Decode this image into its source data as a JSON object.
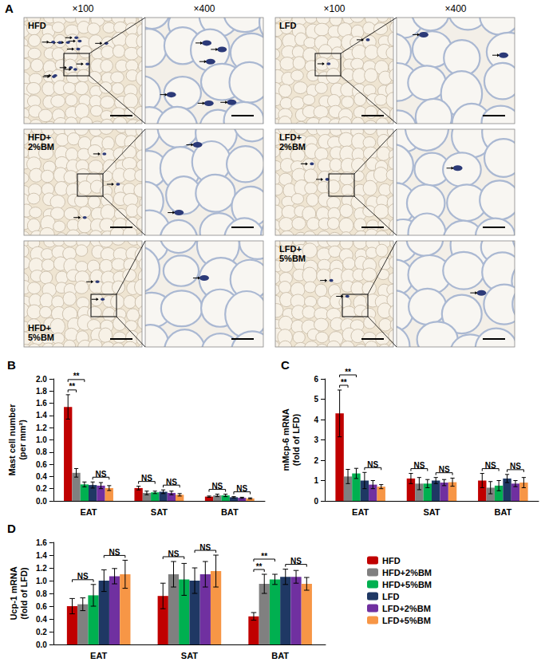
{
  "micrographs": {
    "title": "A",
    "magnifications": [
      "×100",
      "×400",
      "×100",
      "×400"
    ],
    "rows": [
      {
        "left": [
          "HFD"
        ],
        "right": [
          "LFD"
        ]
      },
      {
        "left": [
          "HFD+",
          "2%BM"
        ],
        "right": [
          "LFD+",
          "2%BM"
        ]
      },
      {
        "left": [
          "HFD+",
          "5%BM"
        ],
        "right": [
          "LFD+",
          "5%BM"
        ]
      }
    ]
  },
  "chart_data": [
    {
      "type": "bar",
      "title": "B",
      "categories": [
        "EAT",
        "SAT",
        "BAT"
      ],
      "y_label": [
        "Mast cell number",
        "(per mm²)"
      ],
      "ylim": [
        0,
        2
      ],
      "yticks": [
        {
          "value": 0,
          "label": "0.0"
        },
        {
          "value": 0.2,
          "label": "0.2"
        },
        {
          "value": 0.4,
          "label": "0.4"
        },
        {
          "value": 0.6,
          "label": "0.6"
        },
        {
          "value": 0.8,
          "label": "0.8"
        },
        {
          "value": 1,
          "label": "1.0"
        },
        {
          "value": 1.2,
          "label": "1.2"
        },
        {
          "value": 1.4,
          "label": "1.4"
        },
        {
          "value": 1.6,
          "label": "1.6"
        },
        {
          "value": 1.8,
          "label": "1.8"
        },
        {
          "value": 2,
          "label": "2.0"
        }
      ],
      "grid": false,
      "series": [
        {
          "name": "HFD",
          "color": "#c00000",
          "values": [
            1.54,
            0.21,
            0.07
          ],
          "errors": [
            0.2,
            0.03,
            0.01
          ]
        },
        {
          "name": "HFD+2%BM",
          "color": "#808080",
          "values": [
            0.46,
            0.13,
            0.09
          ],
          "errors": [
            0.07,
            0.03,
            0.02
          ]
        },
        {
          "name": "HFD+5%BM",
          "color": "#00b050",
          "values": [
            0.27,
            0.14,
            0.09
          ],
          "errors": [
            0.04,
            0.02,
            0.02
          ]
        },
        {
          "name": "LFD",
          "color": "#1f3864",
          "values": [
            0.26,
            0.15,
            0.06
          ],
          "errors": [
            0.05,
            0.03,
            0.01
          ]
        },
        {
          "name": "LFD+2%BM",
          "color": "#7030a0",
          "values": [
            0.25,
            0.13,
            0.05
          ],
          "errors": [
            0.05,
            0.03,
            0.01
          ]
        },
        {
          "name": "LFD+5%BM",
          "color": "#f79646",
          "values": [
            0.21,
            0.1,
            0.04
          ],
          "errors": [
            0.04,
            0.02,
            0.01
          ]
        }
      ],
      "annotations": [
        {
          "category": "EAT",
          "from": "HFD",
          "to": "HFD+2%BM",
          "label": "**"
        },
        {
          "category": "EAT",
          "from": "HFD",
          "to": "HFD+5%BM",
          "label": "**"
        },
        {
          "category": "EAT",
          "from": "LFD",
          "to": "LFD+5%BM",
          "label": "NS"
        },
        {
          "category": "SAT",
          "from": "HFD",
          "to": "HFD+5%BM",
          "label": "NS"
        },
        {
          "category": "SAT",
          "from": "LFD",
          "to": "LFD+5%BM",
          "label": "NS"
        },
        {
          "category": "BAT",
          "from": "HFD",
          "to": "HFD+5%BM",
          "label": "NS"
        },
        {
          "category": "BAT",
          "from": "LFD",
          "to": "LFD+5%BM",
          "label": "NS"
        }
      ]
    },
    {
      "type": "bar",
      "title": "C",
      "categories": [
        "EAT",
        "SAT",
        "BAT"
      ],
      "y_label": [
        "mMcp-6 mRNA",
        "(fold of LFD)"
      ],
      "ylim": [
        0,
        6
      ],
      "yticks": [
        0,
        1,
        2,
        3,
        4,
        5,
        6
      ],
      "grid": false,
      "series": [
        {
          "name": "HFD",
          "color": "#c00000",
          "values": [
            4.3,
            1.1,
            1.0
          ],
          "errors": [
            1.15,
            0.25,
            0.35
          ]
        },
        {
          "name": "HFD+2%BM",
          "color": "#808080",
          "values": [
            1.2,
            0.85,
            0.65
          ],
          "errors": [
            0.35,
            0.3,
            0.3
          ]
        },
        {
          "name": "HFD+5%BM",
          "color": "#00b050",
          "values": [
            1.35,
            0.85,
            0.75
          ],
          "errors": [
            0.25,
            0.2,
            0.25
          ]
        },
        {
          "name": "LFD",
          "color": "#1f3864",
          "values": [
            1.0,
            1.0,
            1.1
          ],
          "errors": [
            0.4,
            0.15,
            0.2
          ]
        },
        {
          "name": "LFD+2%BM",
          "color": "#7030a0",
          "values": [
            0.8,
            0.9,
            0.85
          ],
          "errors": [
            0.2,
            0.15,
            0.15
          ]
        },
        {
          "name": "LFD+5%BM",
          "color": "#f79646",
          "values": [
            0.7,
            0.92,
            0.9
          ],
          "errors": [
            0.1,
            0.2,
            0.25
          ]
        }
      ],
      "annotations": [
        {
          "category": "EAT",
          "from": "HFD",
          "to": "HFD+2%BM",
          "label": "**"
        },
        {
          "category": "EAT",
          "from": "HFD",
          "to": "HFD+5%BM",
          "label": "**"
        },
        {
          "category": "EAT",
          "from": "LFD",
          "to": "LFD+5%BM",
          "label": "NS"
        },
        {
          "category": "SAT",
          "from": "HFD",
          "to": "HFD+5%BM",
          "label": "NS"
        },
        {
          "category": "SAT",
          "from": "LFD",
          "to": "LFD+5%BM",
          "label": "NS"
        },
        {
          "category": "BAT",
          "from": "HFD",
          "to": "HFD+5%BM",
          "label": "NS"
        },
        {
          "category": "BAT",
          "from": "LFD",
          "to": "LFD+5%BM",
          "label": "NS"
        }
      ]
    },
    {
      "type": "bar",
      "title": "D",
      "categories": [
        "EAT",
        "SAT",
        "BAT"
      ],
      "y_label": [
        "Ucp-1 mRNA",
        "(fold of LFD)"
      ],
      "ylim": [
        0,
        1.6
      ],
      "yticks": [
        {
          "value": 0,
          "label": "0.0"
        },
        {
          "value": 0.2,
          "label": "0.2"
        },
        {
          "value": 0.4,
          "label": "0.4"
        },
        {
          "value": 0.6,
          "label": "0.6"
        },
        {
          "value": 0.8,
          "label": "0.8"
        },
        {
          "value": 1,
          "label": "1.0"
        },
        {
          "value": 1.2,
          "label": "1.2"
        },
        {
          "value": 1.4,
          "label": "1.4"
        },
        {
          "value": 1.6,
          "label": "1.6"
        }
      ],
      "grid": false,
      "legend": "right",
      "series": [
        {
          "name": "HFD",
          "color": "#c00000",
          "values": [
            0.6,
            0.76,
            0.44
          ],
          "errors": [
            0.12,
            0.2,
            0.06
          ]
        },
        {
          "name": "HFD+2%BM",
          "color": "#808080",
          "values": [
            0.63,
            1.1,
            0.95
          ],
          "errors": [
            0.1,
            0.2,
            0.15
          ]
        },
        {
          "name": "HFD+5%BM",
          "color": "#00b050",
          "values": [
            0.77,
            1.02,
            1.02
          ],
          "errors": [
            0.17,
            0.25,
            0.08
          ]
        },
        {
          "name": "LFD",
          "color": "#1f3864",
          "values": [
            1.0,
            1.0,
            1.06
          ],
          "errors": [
            0.17,
            0.2,
            0.12
          ]
        },
        {
          "name": "LFD+2%BM",
          "color": "#7030a0",
          "values": [
            1.07,
            1.1,
            1.06
          ],
          "errors": [
            0.12,
            0.2,
            0.1
          ]
        },
        {
          "name": "LFD+5%BM",
          "color": "#f79646",
          "values": [
            1.1,
            1.15,
            0.95
          ],
          "errors": [
            0.22,
            0.25,
            0.1
          ]
        }
      ],
      "annotations": [
        {
          "category": "EAT",
          "from": "HFD",
          "to": "HFD+5%BM",
          "label": "NS"
        },
        {
          "category": "EAT",
          "from": "LFD",
          "to": "LFD+5%BM",
          "label": "NS"
        },
        {
          "category": "SAT",
          "from": "HFD",
          "to": "HFD+5%BM",
          "label": "NS"
        },
        {
          "category": "SAT",
          "from": "LFD",
          "to": "LFD+5%BM",
          "label": "NS"
        },
        {
          "category": "BAT",
          "from": "HFD",
          "to": "HFD+2%BM",
          "label": "**"
        },
        {
          "category": "BAT",
          "from": "HFD",
          "to": "HFD+5%BM",
          "label": "**"
        },
        {
          "category": "BAT",
          "from": "LFD",
          "to": "LFD+5%BM",
          "label": "NS"
        }
      ]
    }
  ]
}
